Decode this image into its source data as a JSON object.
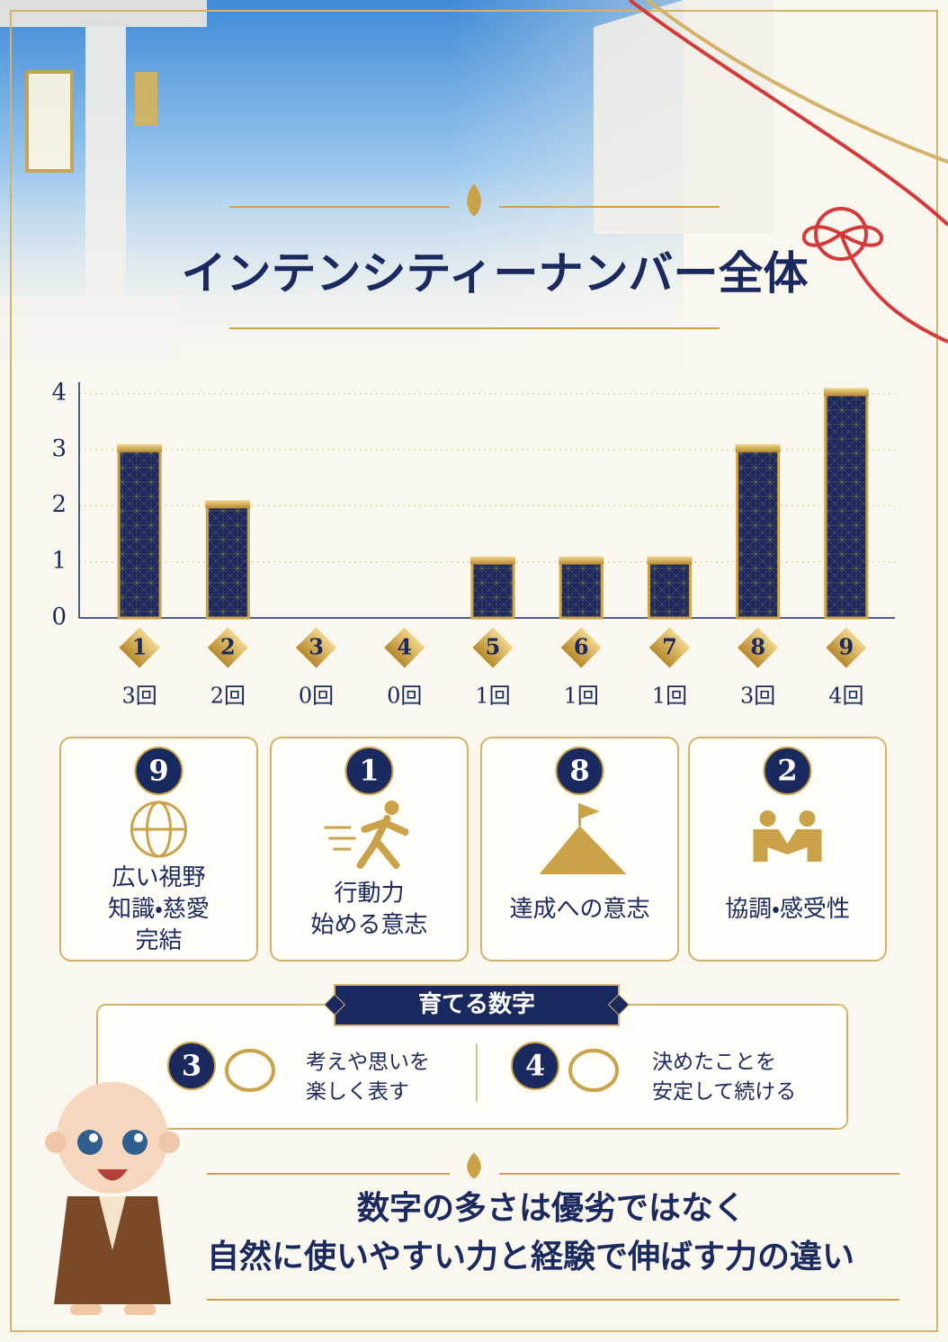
{
  "chart_data": {
    "type": "bar",
    "title": "インテンシティーナンバー全体",
    "categories": [
      "1",
      "2",
      "3",
      "4",
      "5",
      "6",
      "7",
      "8",
      "9"
    ],
    "values": [
      3,
      2,
      0,
      0,
      1,
      1,
      1,
      3,
      4
    ],
    "value_labels": [
      "3回",
      "2回",
      "0回",
      "0回",
      "1回",
      "1回",
      "1回",
      "3回",
      "4回"
    ],
    "color": "#1b2a5e",
    "ylim": [
      0,
      4.2
    ],
    "yticks": [
      0,
      1,
      2,
      3,
      4
    ],
    "grid": true
  },
  "cards": [
    {
      "number": "9",
      "lines": [
        "広い視野",
        "知識・慈愛",
        "完結"
      ]
    },
    {
      "number": "1",
      "lines": [
        "行動力",
        "始める意志"
      ]
    },
    {
      "number": "8",
      "lines": [
        "達成への意志"
      ]
    },
    {
      "number": "2",
      "lines": [
        "協調・感受性"
      ]
    }
  ],
  "grow": {
    "title": "育てる数字",
    "items": [
      {
        "number": "3",
        "lines": [
          "考えや思いを",
          "楽しく表す"
        ]
      },
      {
        "number": "4",
        "lines": [
          "決めたことを",
          "安定して続ける"
        ]
      }
    ]
  },
  "footer": {
    "lines": [
      "数字の多さは優劣ではなく",
      "自然に使いやすい力と経験で伸ばす力の違い"
    ]
  }
}
